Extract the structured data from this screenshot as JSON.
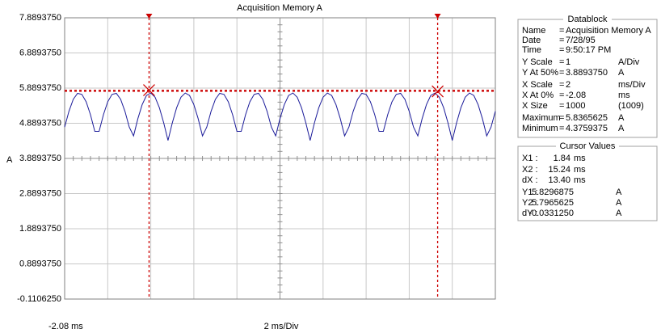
{
  "chart_data": {
    "type": "line",
    "title": "Acquisition Memory A",
    "y_label": "A",
    "x_start_label": "-2.08 ms",
    "x_scale_label": "2 ms/Div",
    "xlim": [
      -2.08,
      17.92
    ],
    "xticks": [
      -2.08,
      -0.08,
      1.92,
      3.92,
      5.92,
      7.92,
      9.92,
      11.92,
      13.92,
      15.92,
      17.92
    ],
    "ylim": [
      -0.110625,
      7.889375
    ],
    "yticks": [
      {
        "value": 7.889375,
        "label": "7.8893750"
      },
      {
        "value": 6.889375,
        "label": "6.8893750"
      },
      {
        "value": 5.889375,
        "label": "5.8893750"
      },
      {
        "value": 4.889375,
        "label": "4.8893750"
      },
      {
        "value": 3.889375,
        "label": "3.8893750"
      },
      {
        "value": 2.889375,
        "label": "2.8893750"
      },
      {
        "value": 1.889375,
        "label": "1.8893750"
      },
      {
        "value": 0.889375,
        "label": "0.8893750"
      },
      {
        "value": -0.110625,
        "label": "-0.1106250"
      }
    ],
    "grid": true,
    "color": "#1c1c9a",
    "cursor_color": "#cc0000",
    "x": [
      -2.08,
      -1.88,
      -1.68,
      -1.48,
      -1.28,
      -1.08,
      -0.88,
      -0.68,
      -0.48,
      -0.28,
      -0.08,
      0.12,
      0.32,
      0.52,
      0.72,
      0.92,
      1.12,
      1.32,
      1.52,
      1.72,
      1.92,
      2.12,
      2.32,
      2.52,
      2.72,
      2.92,
      3.12,
      3.32,
      3.52,
      3.72,
      3.92,
      4.12,
      4.32,
      4.52,
      4.72,
      4.92,
      5.12,
      5.32,
      5.52,
      5.72,
      5.92,
      6.12,
      6.32,
      6.52,
      6.72,
      6.92,
      7.12,
      7.32,
      7.52,
      7.72,
      7.92,
      8.12,
      8.32,
      8.52,
      8.72,
      8.92,
      9.12,
      9.32,
      9.52,
      9.72,
      9.92,
      10.12,
      10.32,
      10.52,
      10.72,
      10.92,
      11.12,
      11.32,
      11.52,
      11.72,
      11.92,
      12.12,
      12.32,
      12.52,
      12.72,
      12.92,
      13.12,
      13.32,
      13.52,
      13.72,
      13.92,
      14.12,
      14.32,
      14.52,
      14.72,
      14.92,
      15.12,
      15.32,
      15.52,
      15.72,
      15.92,
      16.12,
      16.32,
      16.52,
      16.72,
      16.92,
      17.12,
      17.32,
      17.52,
      17.72,
      17.92
    ],
    "values": [
      4.78,
      5.23,
      5.57,
      5.74,
      5.71,
      5.5,
      5.13,
      4.66,
      4.66,
      5.13,
      5.5,
      5.71,
      5.74,
      5.57,
      5.23,
      4.78,
      4.53,
      5.02,
      5.42,
      5.68,
      5.75,
      5.63,
      5.33,
      4.9,
      4.4,
      4.9,
      5.33,
      5.63,
      5.75,
      5.68,
      5.42,
      5.02,
      4.53,
      4.78,
      5.23,
      5.57,
      5.74,
      5.71,
      5.5,
      5.13,
      4.66,
      4.66,
      5.13,
      5.5,
      5.71,
      5.74,
      5.57,
      5.23,
      4.78,
      4.53,
      5.02,
      5.42,
      5.68,
      5.75,
      5.63,
      5.33,
      4.9,
      4.4,
      4.9,
      5.33,
      5.63,
      5.75,
      5.68,
      5.42,
      5.02,
      4.53,
      4.78,
      5.23,
      5.57,
      5.74,
      5.71,
      5.5,
      5.13,
      4.66,
      4.66,
      5.13,
      5.5,
      5.71,
      5.74,
      5.57,
      5.23,
      4.78,
      4.53,
      5.02,
      5.42,
      5.68,
      5.75,
      5.63,
      5.33,
      4.9,
      4.4,
      4.9,
      5.33,
      5.63,
      5.75,
      5.68,
      5.42,
      5.02,
      4.53,
      4.78,
      5.23
    ],
    "cursors": {
      "x": [
        1.84,
        15.24
      ],
      "y": [
        5.8296875,
        5.7965625
      ]
    }
  },
  "datablock": {
    "title": "Datablock",
    "rows": [
      [
        "Name",
        "=",
        "Acquisition Memory A",
        ""
      ],
      [
        "Date",
        "=",
        "7/28/95",
        ""
      ],
      [
        "Time",
        "=",
        "9:50:17 PM",
        ""
      ],
      [
        "Y Scale",
        "=",
        "1",
        "A/Div"
      ],
      [
        "Y At 50%",
        "=",
        "3.8893750",
        "A"
      ],
      [
        "X Scale",
        "=",
        "2",
        "ms/Div"
      ],
      [
        "X At 0%",
        "=",
        "-2.08",
        "ms"
      ],
      [
        "X Size",
        "=",
        "1000",
        "(1009)"
      ],
      [
        "Maximum",
        "=",
        "5.8365625",
        "A"
      ],
      [
        "Minimum",
        "=",
        "4.3759375",
        "A"
      ]
    ]
  },
  "cursor_values": {
    "title": "Cursor Values",
    "labels": [
      "X1 :",
      "X2 :",
      "dX :",
      "Y1 :",
      "Y2 :",
      "dY :"
    ],
    "dx": "13.40",
    "dy": "-0.0331250",
    "x_unit": "ms",
    "y_unit": "A"
  }
}
